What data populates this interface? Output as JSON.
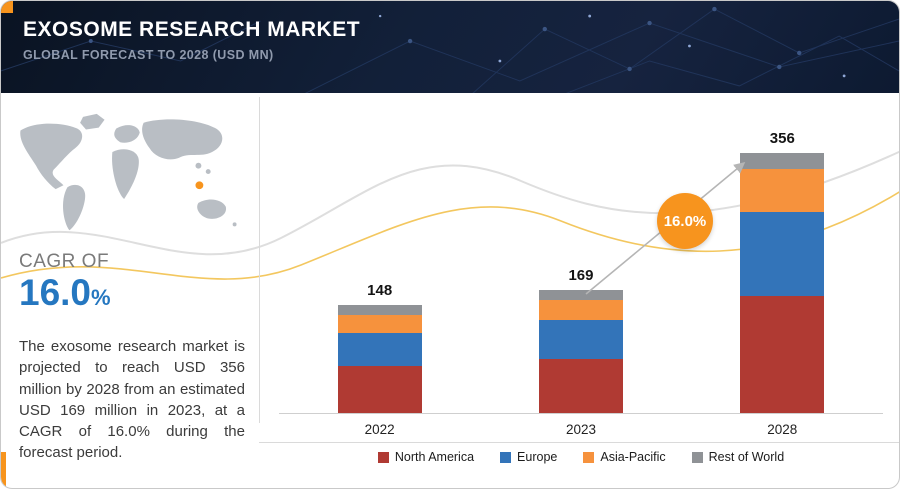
{
  "header": {
    "title": "EXOSOME RESEARCH MARKET",
    "subtitle": "GLOBAL FORECAST TO 2028 (USD MN)"
  },
  "left_panel": {
    "cagr_label": "CAGR OF",
    "cagr_value": "16.0",
    "cagr_unit": "%",
    "description": "The exosome research market is projected to reach USD 356 million by 2028 from an estimated USD 169 million in 2023, at a CAGR of 16.0% during the forecast period."
  },
  "chart_data": {
    "type": "bar",
    "stacked": true,
    "title": "",
    "unit": "USD MN",
    "categories": [
      "2022",
      "2023",
      "2028"
    ],
    "series": [
      {
        "name": "North America",
        "color": "#b03a33",
        "values": [
          64,
          74,
          160
        ]
      },
      {
        "name": "Europe",
        "color": "#3374b9",
        "values": [
          46,
          54,
          116
        ]
      },
      {
        "name": "Asia-Pacific",
        "color": "#f6923d",
        "values": [
          24,
          27,
          58
        ]
      },
      {
        "name": "Rest of World",
        "color": "#8f9296",
        "values": [
          14,
          14,
          22
        ]
      }
    ],
    "totals": [
      148,
      169,
      356
    ],
    "growth_label": "16.0%",
    "ylim": [
      0,
      380
    ],
    "grid": false,
    "legend_position": "bottom"
  },
  "colors": {
    "accent_orange": "#f7941d",
    "cagr_blue": "#2577c0",
    "header_bg": "#0e1a31",
    "axis_gray": "#cfcfcf"
  }
}
